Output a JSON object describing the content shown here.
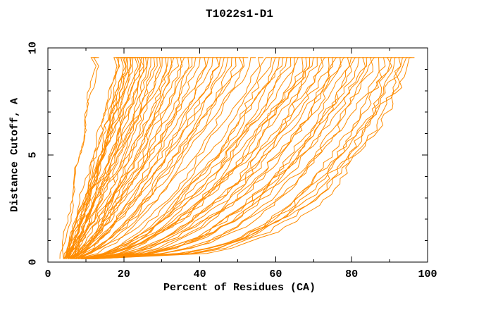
{
  "chart_data": {
    "type": "line",
    "title": "T1022s1-D1",
    "xlabel": "Percent of Residues (CA)",
    "ylabel": "Distance Cutoff, A",
    "xlim": [
      0,
      100
    ],
    "ylim": [
      0,
      10
    ],
    "grid": false,
    "legend": "none",
    "frame": "box-with-inward-ticks",
    "axis_color": "#000000",
    "line_color": "#FF8C00",
    "background_color": "#ffffff",
    "x_major_ticks": [
      0,
      20,
      40,
      60,
      80,
      100
    ],
    "x_minor_ticks": [
      10,
      30,
      50,
      70,
      90
    ],
    "y_major_ticks": [
      0,
      5,
      10
    ],
    "y_minor_ticks": [
      1,
      2,
      3,
      4,
      6,
      7,
      8,
      9
    ],
    "cutoff_start": 0.15,
    "cutoff_end": 9.55,
    "cutoff_step": 0.25,
    "curves_top_percent": [
      12.5,
      13.2,
      18.5,
      19.2,
      19.8,
      20.3,
      20.8,
      21.2,
      21.7,
      22.1,
      22.6,
      23.0,
      23.5,
      24.0,
      24.6,
      25.1,
      25.7,
      26.2,
      26.8,
      27.5,
      28.2,
      29.0,
      29.8,
      30.5,
      31.2,
      32.0,
      32.8,
      33.5,
      34.3,
      35.0,
      36.0,
      37.0,
      38.0,
      39.0,
      40.0,
      41.2,
      42.3,
      43.4,
      44.5,
      45.5,
      46.5,
      47.5,
      48.5,
      49.5,
      50.5,
      51.5,
      52.5,
      54.5,
      56.5,
      58.5,
      60.0,
      61.0,
      62.0,
      63.0,
      64.0,
      65.0,
      66.0,
      67.0,
      68.0,
      69.0,
      70.0,
      71.0,
      72.0,
      73.0,
      74.0,
      75.0,
      76.0,
      77.0,
      78.0,
      79.0,
      80.0,
      81.0,
      82.0,
      83.0,
      84.0,
      85.0,
      86.0,
      87.0,
      88.2,
      89.5,
      90.5,
      91.5,
      92.5,
      93.5,
      94.5,
      95.5,
      96.3
    ],
    "curve_start_percent_range": [
      4,
      12
    ],
    "curve_shape": {
      "start_base": 4.0,
      "start_span": 8.0,
      "start_jitter": 2.0,
      "k_base": 1.0,
      "k_span": 0.72,
      "k_jitter": 0.08,
      "jitter_base": 0.5,
      "jitter_span": 0.7,
      "seed": 11
    }
  }
}
